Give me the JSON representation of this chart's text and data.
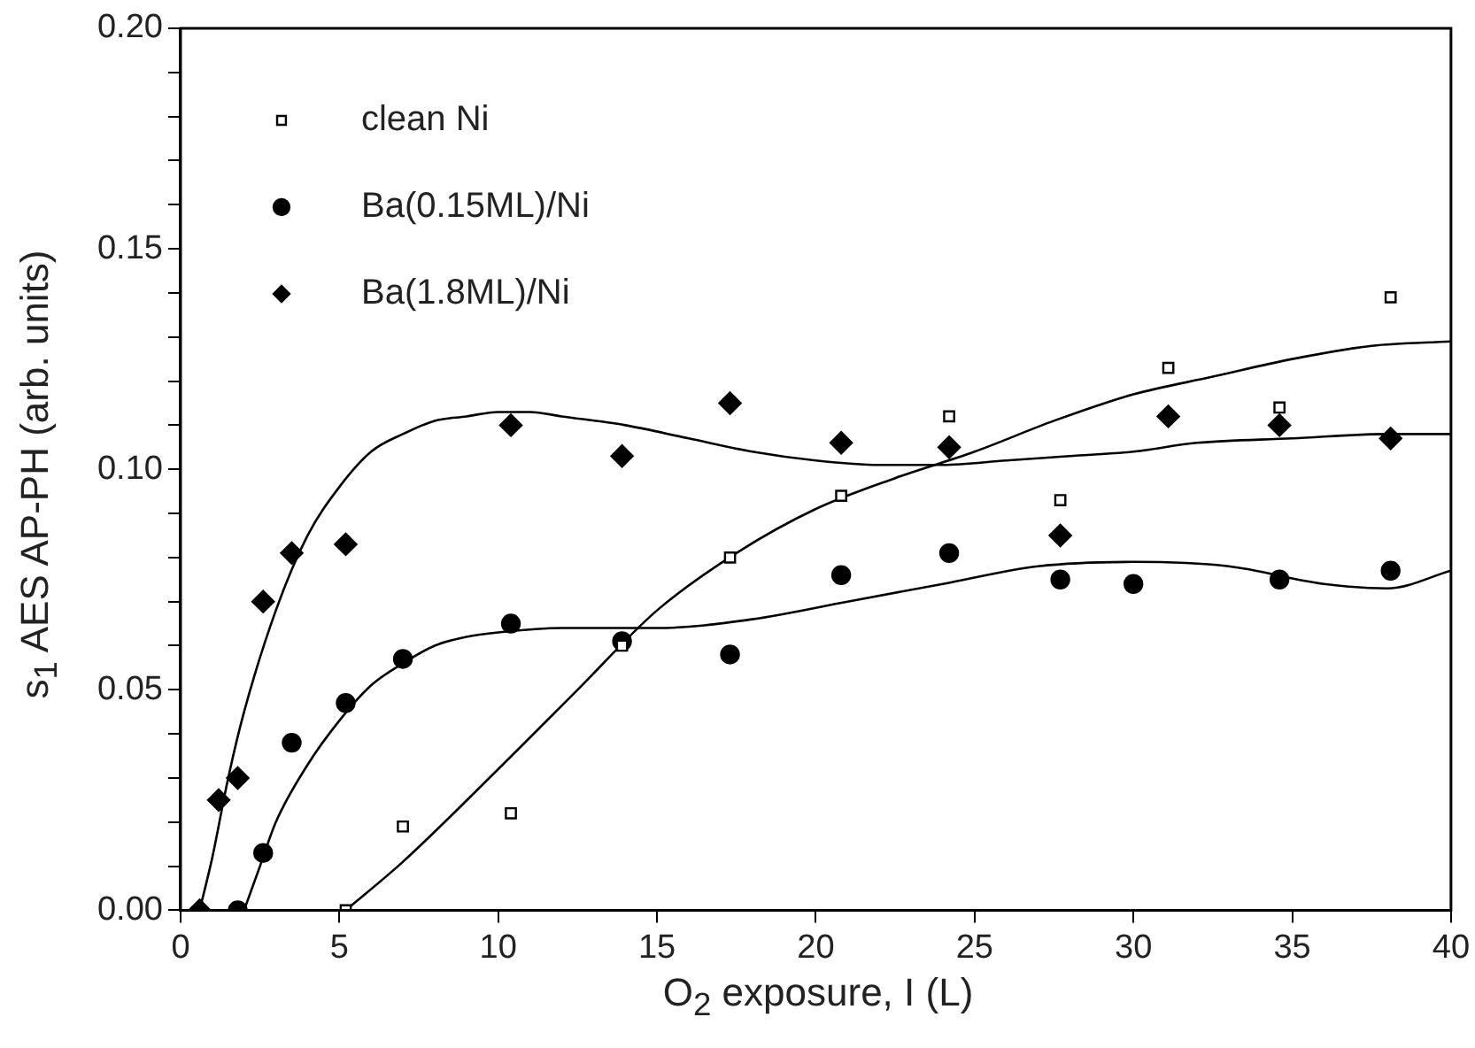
{
  "chart_data": {
    "type": "scatter",
    "xlabel": "O$_{2}$ exposure, I (L)",
    "ylabel": "s$_{1}$ AES AP-PH (arb. units)",
    "xlim": [
      0,
      40
    ],
    "xticks": [
      0,
      5,
      10,
      15,
      20,
      25,
      30,
      35,
      40
    ],
    "ylim": [
      0,
      0.2
    ],
    "yticks": [
      {
        "value": 0,
        "label": "0.00"
      },
      {
        "value": 0.01,
        "label": null
      },
      {
        "value": 0.02,
        "label": null
      },
      {
        "value": 0.03,
        "label": null
      },
      {
        "value": 0.04,
        "label": null
      },
      {
        "value": 0.05,
        "label": "0.05"
      },
      {
        "value": 0.06,
        "label": null
      },
      {
        "value": 0.07,
        "label": null
      },
      {
        "value": 0.08,
        "label": null
      },
      {
        "value": 0.09,
        "label": null
      },
      {
        "value": 0.1,
        "label": "0.10"
      },
      {
        "value": 0.11,
        "label": null
      },
      {
        "value": 0.12,
        "label": null
      },
      {
        "value": 0.13,
        "label": null
      },
      {
        "value": 0.14,
        "label": null
      },
      {
        "value": 0.15,
        "label": "0.15"
      },
      {
        "value": 0.16,
        "label": null
      },
      {
        "value": 0.17,
        "label": null
      },
      {
        "value": 0.18,
        "label": null
      },
      {
        "value": 0.19,
        "label": null
      },
      {
        "value": 0.2,
        "label": "0.20"
      }
    ],
    "grid": false,
    "legend": "top left",
    "series": [
      {
        "name": "clean Ni",
        "color": "#000000",
        "marker": "square",
        "x": [
          5.2,
          7,
          10.4,
          13.9,
          17.3,
          20.8,
          24.2,
          27.7,
          31.1,
          34.6,
          38.1
        ],
        "values": [
          0,
          0.019,
          0.022,
          0.06,
          0.08,
          0.094,
          0.112,
          0.093,
          0.123,
          0.114,
          0.139
        ]
      },
      {
        "name": "Ba(0.15ML)/Ni",
        "color": "#000000",
        "marker": "circle",
        "x": [
          1.8,
          2.6,
          3.5,
          5.2,
          7,
          10.4,
          13.9,
          17.3,
          20.8,
          24.2,
          27.7,
          30,
          34.6,
          38.1
        ],
        "values": [
          0,
          0.013,
          0.038,
          0.047,
          0.057,
          0.065,
          0.061,
          0.058,
          0.076,
          0.081,
          0.075,
          0.074,
          0.075,
          0.077
        ]
      },
      {
        "name": "Ba(1.8ML)/Ni",
        "color": "#000000",
        "marker": "diamond",
        "x": [
          0.6,
          1.2,
          1.8,
          2.6,
          3.5,
          5.2,
          10.4,
          13.9,
          17.3,
          20.8,
          24.2,
          27.7,
          31.1,
          34.6,
          38.1
        ],
        "values": [
          0,
          0.025,
          0.03,
          0.07,
          0.081,
          0.083,
          0.11,
          0.103,
          0.115,
          0.106,
          0.105,
          0.085,
          0.112,
          0.11,
          0.107
        ]
      },
      {
        "type": "line",
        "color": "#000000",
        "marker": "none",
        "x": [
          5.2,
          7,
          10,
          12.5,
          15,
          17.5,
          20,
          22.5,
          25,
          27.5,
          30,
          32.5,
          35,
          37.5,
          40
        ],
        "values": [
          0,
          0.011,
          0.032,
          0.05,
          0.068,
          0.081,
          0.091,
          0.098,
          0.104,
          0.111,
          0.117,
          0.121,
          0.125,
          0.128,
          0.129
        ]
      },
      {
        "type": "line",
        "color": "#000000",
        "marker": "none",
        "x": [
          2,
          2.5,
          3,
          4,
          5,
          6,
          7,
          8,
          9,
          10,
          12,
          15,
          18,
          21,
          24,
          27,
          30,
          33,
          36,
          38,
          40
        ],
        "values": [
          0,
          0.01,
          0.02,
          0.033,
          0.043,
          0.051,
          0.056,
          0.06,
          0.062,
          0.063,
          0.064,
          0.064,
          0.066,
          0.07,
          0.074,
          0.078,
          0.079,
          0.078,
          0.074,
          0.073,
          0.077
        ]
      },
      {
        "type": "line",
        "color": "#000000",
        "marker": "none",
        "x": [
          0.6,
          1,
          1.5,
          2,
          3,
          4,
          5,
          6,
          7,
          8,
          9,
          10,
          11,
          12,
          14,
          16,
          18,
          20,
          22,
          24,
          26,
          28,
          30,
          32,
          35,
          38,
          40
        ],
        "values": [
          0,
          0.012,
          0.03,
          0.045,
          0.068,
          0.085,
          0.096,
          0.104,
          0.108,
          0.111,
          0.112,
          0.113,
          0.113,
          0.112,
          0.11,
          0.107,
          0.104,
          0.102,
          0.101,
          0.101,
          0.102,
          0.103,
          0.104,
          0.106,
          0.107,
          0.108,
          0.108
        ]
      }
    ]
  }
}
